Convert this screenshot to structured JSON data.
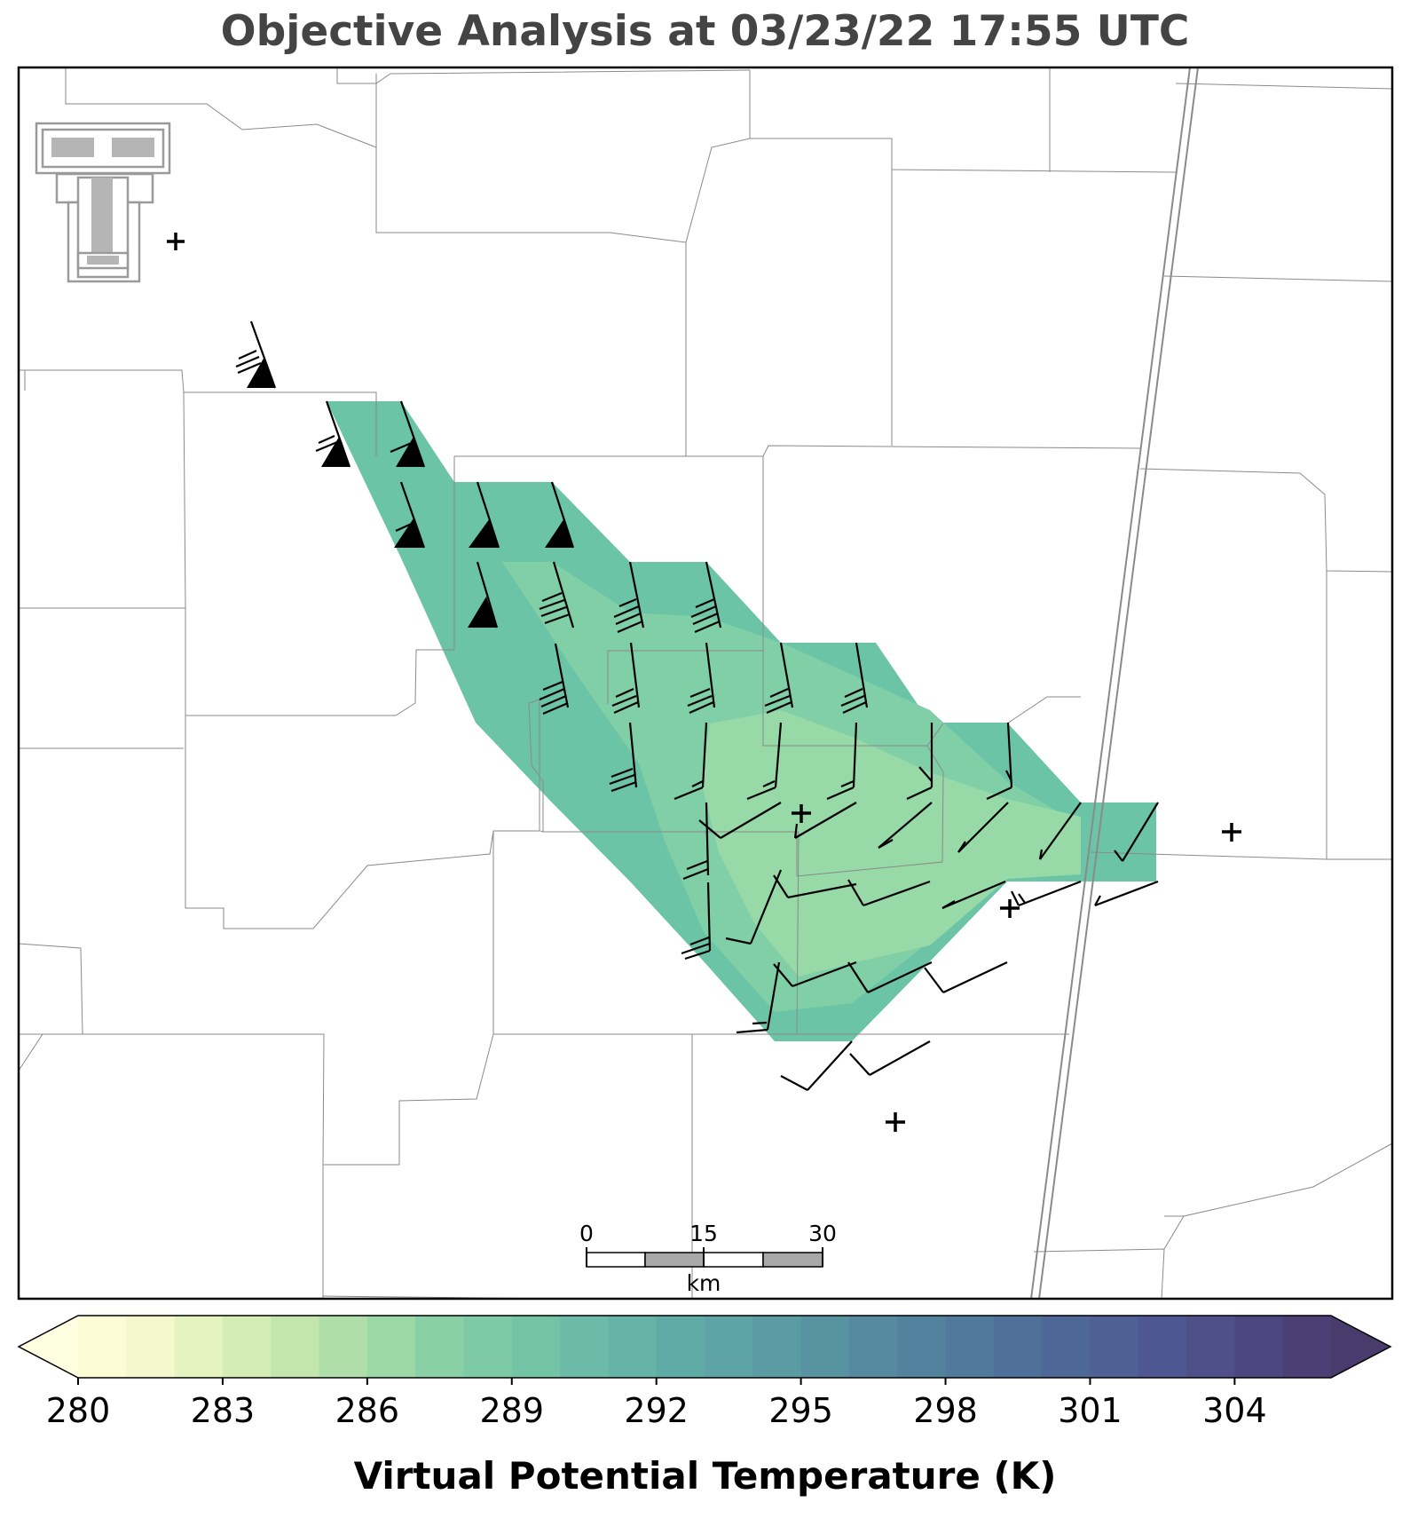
{
  "title": "Objective Analysis at 03/23/22 17:55 UTC",
  "colorbar": {
    "label": "Virtual Potential Temperature (K)",
    "min": 280,
    "max": 306,
    "step": 1,
    "tick_values": [
      280,
      283,
      286,
      289,
      292,
      295,
      298,
      301,
      304
    ],
    "tick_labels": [
      "280",
      "283",
      "286",
      "289",
      "292",
      "295",
      "298",
      "301",
      "304"
    ],
    "extend": "both",
    "colors": [
      "#fcfdd5",
      "#f3f9cc",
      "#e4f3c0",
      "#d4ecb6",
      "#c2e6ad",
      "#afdea8",
      "#9cd7a6",
      "#8ad0a6",
      "#7ec9a6",
      "#74c3a7",
      "#6cbba8",
      "#66b3a8",
      "#61aba7",
      "#5ea3a6",
      "#5b9ba4",
      "#5893a2",
      "#568aa0",
      "#53829e",
      "#51799c",
      "#4f7199",
      "#4d6896",
      "#4e6096",
      "#4f5792",
      "#4f4f8a",
      "#4d4780",
      "#4b4075"
    ],
    "under_color": "#fefee0",
    "over_color": "#493c6c"
  },
  "scale_bar": {
    "labels": [
      "0",
      "15",
      "30"
    ],
    "unit": "km"
  },
  "logo": {
    "text": "TT"
  },
  "chart_data": {
    "type": "map",
    "field": "Virtual Potential Temperature (K)",
    "analysis_value_range_K": [
      286,
      289
    ],
    "observations_note": "wind barbs drawn at analysis grid points"
  }
}
